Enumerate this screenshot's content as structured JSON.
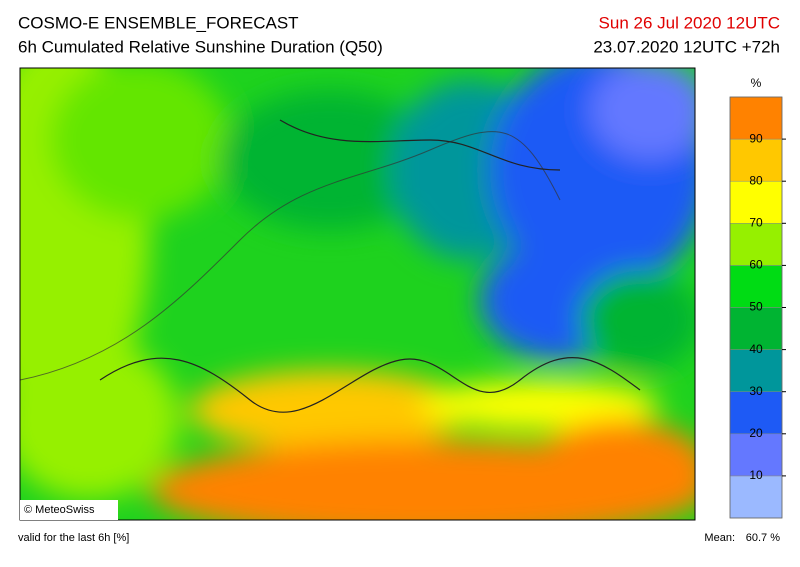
{
  "header": {
    "title": "COSMO-E ENSEMBLE_FORECAST",
    "subtitle": "6h Cumulated Relative Sunshine Duration (Q50)",
    "valid_date": "Sun 26 Jul 2020 12UTC",
    "run": "23.07.2020 12UTC +72h"
  },
  "map": {
    "credit": "© MeteoSwiss"
  },
  "colorbar": {
    "unit": "%",
    "ticks": [
      10,
      20,
      30,
      40,
      50,
      60,
      70,
      80,
      90
    ],
    "colors": [
      "#9bb9ff",
      "#6478ff",
      "#1e5af5",
      "#00969b",
      "#00b432",
      "#00dc14",
      "#96f000",
      "#ffff00",
      "#ffc800",
      "#ff8200"
    ]
  },
  "footer": {
    "valid_note": "valid for the last 6h [%]",
    "mean_label": "Mean:",
    "mean": "60.7 %"
  }
}
